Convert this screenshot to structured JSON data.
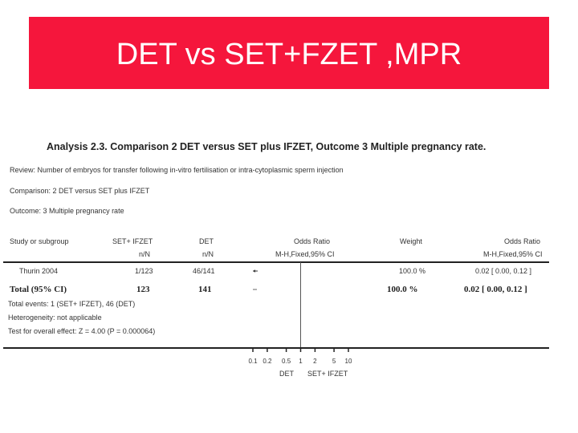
{
  "slide": {
    "title": "DET vs SET+FZET ,MPR"
  },
  "analysis": {
    "title": "Analysis 2.3.   Comparison 2 DET versus SET plus IFZET, Outcome 3 Multiple pregnancy rate.",
    "review": "Review:   Number of embryos for transfer following in-vitro fertilisation or intra-cytoplasmic sperm injection",
    "comparison": "Comparison:   2 DET versus SET plus IFZET",
    "outcome": "Outcome:   3 Multiple pregnancy rate"
  },
  "headers": {
    "study": "Study or subgroup",
    "group1": "SET+ IFZET",
    "group1_sub": "n/N",
    "group2": "DET",
    "group2_sub": "n/N",
    "plot": "Odds Ratio",
    "plot_sub": "M-H,Fixed,95% CI",
    "weight": "Weight",
    "or": "Odds Ratio",
    "or_sub": "M-H,Fixed,95% CI"
  },
  "rows": [
    {
      "study": "Thurin 2004",
      "group1": "1/123",
      "group2": "46/141",
      "weight": "100.0 %",
      "or": "0.02 [ 0.00, 0.12 ]"
    }
  ],
  "total": {
    "label": "Total (95% CI)",
    "group1": "123",
    "group2": "141",
    "weight": "100.0 %",
    "or": "0.02 [ 0.00, 0.12 ]"
  },
  "footnotes": {
    "events": "Total events: 1 (SET+ IFZET), 46 (DET)",
    "heterogeneity": "Heterogeneity: not applicable",
    "overall": "Test for overall effect: Z = 4.00 (P = 0.000064)"
  },
  "chart_data": {
    "type": "forest",
    "x_scale": "log",
    "x_ticks": [
      "0.1",
      "0.2",
      "0.5",
      "1",
      "2",
      "5",
      "10"
    ],
    "x_tick_values": [
      0.1,
      0.2,
      0.5,
      1,
      2,
      5,
      10
    ],
    "reference_line": 1,
    "axis_left_label": "DET",
    "axis_right_label": "SET+ IFZET",
    "points": [
      {
        "label": "Thurin 2004",
        "or": 0.02,
        "ci": [
          0.0,
          0.12
        ],
        "marker": "arrow-left"
      },
      {
        "label": "Total (95% CI)",
        "or": 0.02,
        "ci": [
          0.0,
          0.12
        ],
        "marker": "diamond"
      }
    ]
  }
}
